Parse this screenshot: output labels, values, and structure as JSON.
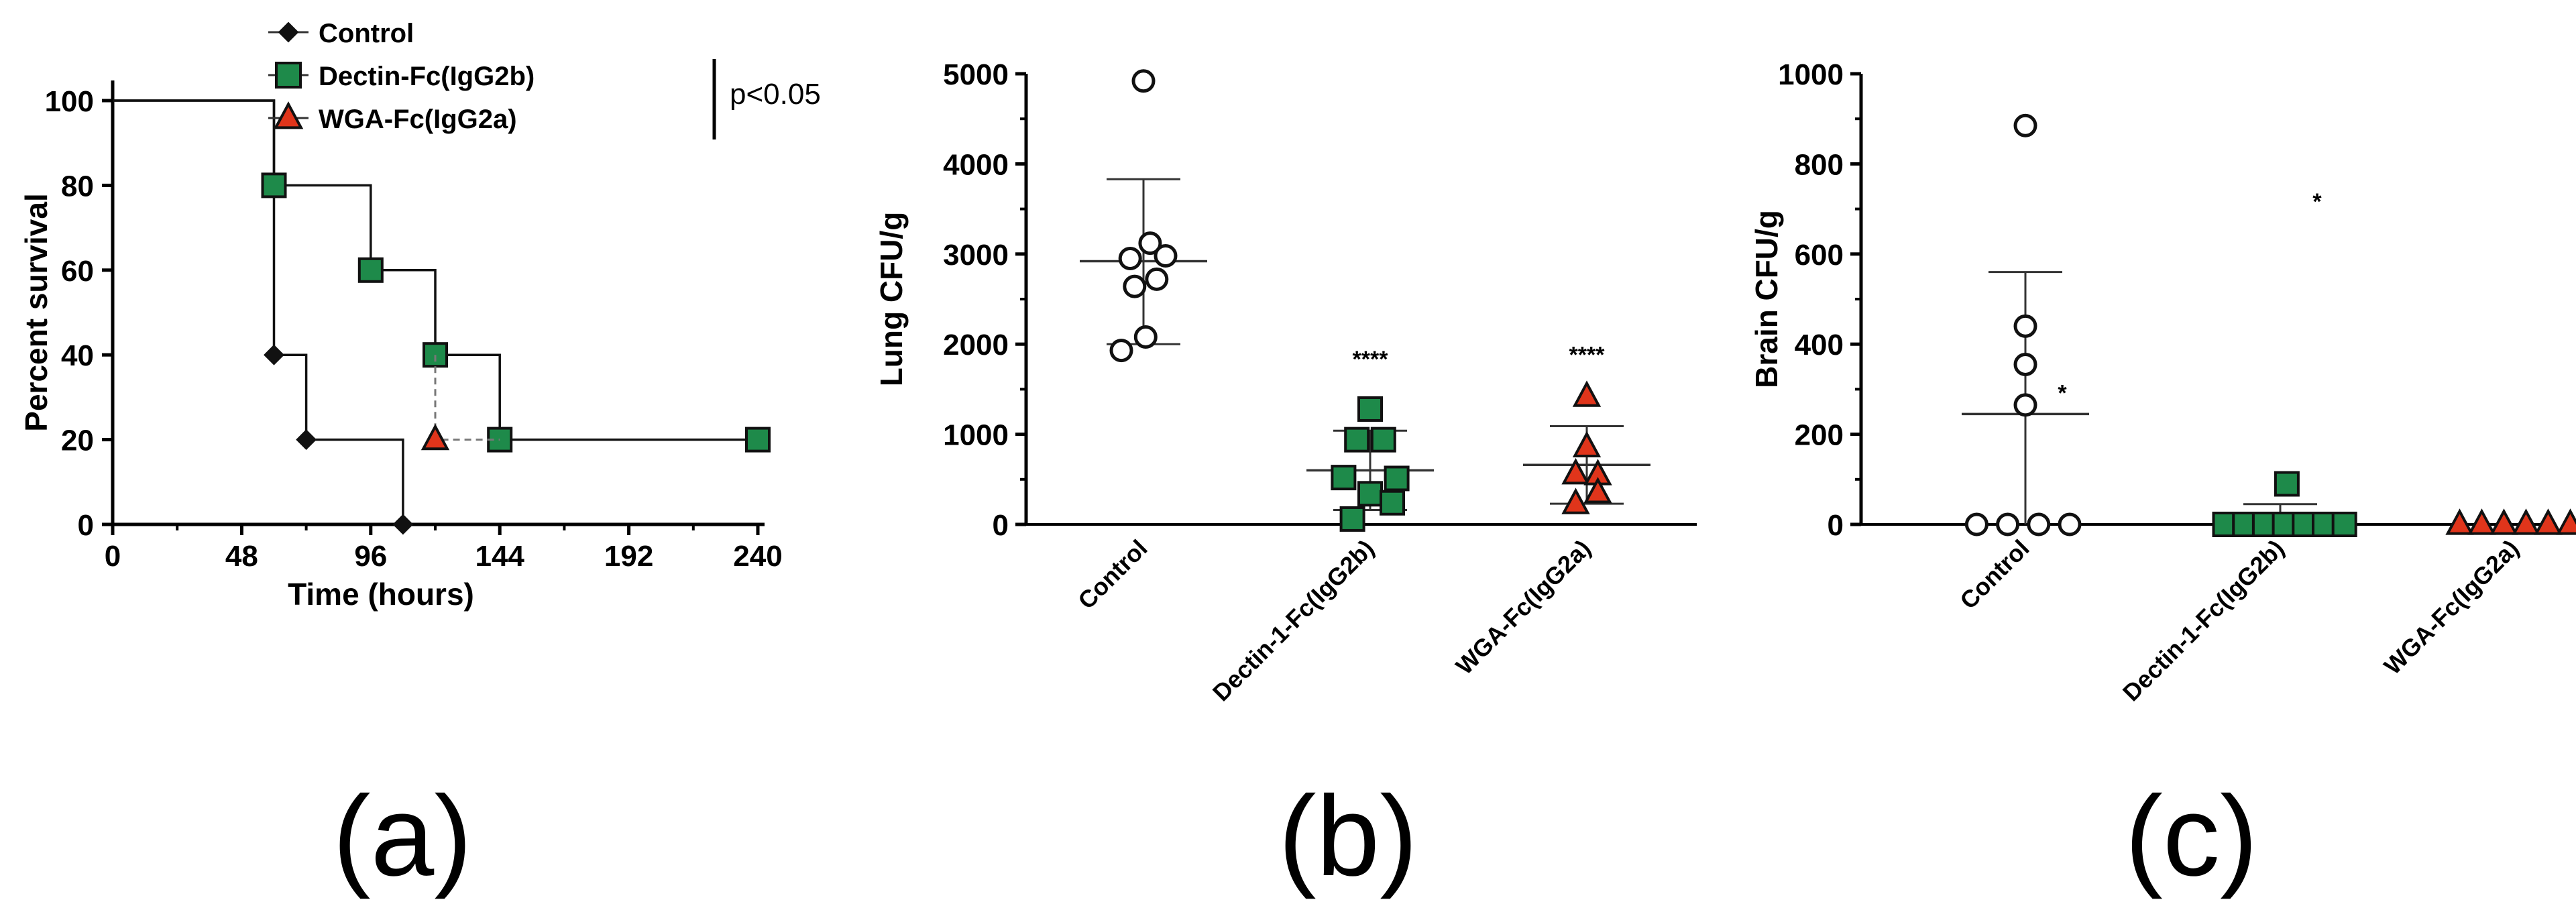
{
  "chart_data": [
    {
      "type": "line",
      "panel_label": "(a)",
      "title": "",
      "xlabel": "Time (hours)",
      "ylabel": "Percent survival",
      "xlim": [
        0,
        240
      ],
      "ylim": [
        0,
        100
      ],
      "xticks": [
        "0",
        "48",
        "96",
        "144",
        "192",
        "240"
      ],
      "yticks": [
        "0",
        "20",
        "40",
        "60",
        "80",
        "100"
      ],
      "annotation": "p<0.05",
      "colors": {
        "Control": "#111111",
        "Dectin-Fc(IgG2b)": "#1e8a4a",
        "WGA-Fc(IgG2a)": "#e0351b"
      },
      "series": [
        {
          "name": "Control",
          "marker": "diamond",
          "steps": [
            [
              0,
              100
            ],
            [
              60,
              100
            ],
            [
              60,
              40
            ],
            [
              72,
              40
            ],
            [
              72,
              20
            ],
            [
              108,
              20
            ],
            [
              108,
              0
            ]
          ],
          "markers": [
            [
              60,
              40
            ],
            [
              72,
              20
            ],
            [
              108,
              0
            ]
          ]
        },
        {
          "name": "Dectin-Fc(IgG2b)",
          "marker": "square",
          "steps": [
            [
              0,
              100
            ],
            [
              60,
              100
            ],
            [
              60,
              80
            ],
            [
              96,
              80
            ],
            [
              96,
              60
            ],
            [
              120,
              60
            ],
            [
              120,
              40
            ],
            [
              144,
              40
            ],
            [
              144,
              20
            ],
            [
              240,
              20
            ]
          ],
          "markers": [
            [
              60,
              80
            ],
            [
              96,
              60
            ],
            [
              120,
              40
            ],
            [
              144,
              20
            ],
            [
              240,
              20
            ]
          ]
        },
        {
          "name": "WGA-Fc(IgG2a)",
          "marker": "triangle",
          "steps": [
            [
              120,
              40
            ],
            [
              120,
              20
            ],
            [
              144,
              20
            ]
          ],
          "markers": [
            [
              120,
              20
            ]
          ]
        }
      ]
    },
    {
      "type": "scatter",
      "panel_label": "(b)",
      "ylabel": "Lung CFU/g",
      "ylim": [
        0,
        5000
      ],
      "yticks": [
        "0",
        "1000",
        "2000",
        "3000",
        "4000",
        "5000"
      ],
      "categories": [
        "Control",
        "Dectin-1-Fc(IgG2b)",
        "WGA-Fc(IgG2a)"
      ],
      "significance": [
        "",
        "****",
        "****"
      ],
      "groups": [
        {
          "name": "Control",
          "marker": "circle",
          "color": "#ffffff",
          "mean": 2920,
          "sd_low": 2000,
          "sd_high": 3830,
          "points": [
            [
              0,
              4920
            ],
            [
              -0.06,
              2950
            ],
            [
              0.03,
              3120
            ],
            [
              0.1,
              2980
            ],
            [
              -0.04,
              2640
            ],
            [
              0.06,
              2720
            ],
            [
              -0.1,
              1930
            ],
            [
              0.01,
              2080
            ]
          ]
        },
        {
          "name": "Dectin-1-Fc(IgG2b)",
          "marker": "square",
          "color": "#1e8a4a",
          "mean": 600,
          "sd_low": 160,
          "sd_high": 1040,
          "points": [
            [
              0,
              1280
            ],
            [
              -0.06,
              940
            ],
            [
              0.06,
              940
            ],
            [
              -0.12,
              520
            ],
            [
              0,
              340
            ],
            [
              0.12,
              510
            ],
            [
              -0.08,
              60
            ],
            [
              0.1,
              240
            ]
          ]
        },
        {
          "name": "WGA-Fc(IgG2a)",
          "marker": "triangle",
          "color": "#e0351b",
          "mean": 660,
          "sd_low": 230,
          "sd_high": 1090,
          "points": [
            [
              0,
              1420
            ],
            [
              0,
              860
            ],
            [
              -0.05,
              560
            ],
            [
              0.05,
              550
            ],
            [
              -0.05,
              230
            ],
            [
              0.05,
              350
            ]
          ]
        }
      ]
    },
    {
      "type": "scatter",
      "panel_label": "(c)",
      "ylabel": "Brain CFU/g",
      "ylim": [
        0,
        1000
      ],
      "yticks": [
        "0",
        "200",
        "400",
        "600",
        "800",
        "1000"
      ],
      "categories": [
        "Control",
        "Dectin-1-Fc(IgG2b)",
        "WGA-Fc(IgG2a)"
      ],
      "significance": [
        "*",
        "*",
        ""
      ],
      "groups": [
        {
          "name": "Control",
          "marker": "circle",
          "color": "#ffffff",
          "mean": 245,
          "sd_low": 0,
          "sd_high": 560,
          "points": [
            [
              0,
              885
            ],
            [
              0,
              440
            ],
            [
              0,
              355
            ],
            [
              0,
              265
            ],
            [
              -0.22,
              0
            ],
            [
              -0.08,
              0
            ],
            [
              0.06,
              0
            ],
            [
              0.2,
              0
            ]
          ]
        },
        {
          "name": "Dectin-1-Fc(IgG2b)",
          "marker": "square",
          "color": "#1e8a4a",
          "mean": 15,
          "sd_low": 0,
          "sd_high": 45,
          "points": [
            [
              0.03,
              90
            ],
            [
              -0.25,
              0
            ],
            [
              -0.16,
              0
            ],
            [
              -0.07,
              0
            ],
            [
              0.02,
              0
            ],
            [
              0.11,
              0
            ],
            [
              0.2,
              0
            ],
            [
              0.29,
              0
            ]
          ]
        },
        {
          "name": "WGA-Fc(IgG2a)",
          "marker": "triangle",
          "color": "#e0351b",
          "mean": 0,
          "sd_low": 0,
          "sd_high": 0,
          "points": [
            [
              -0.25,
              0
            ],
            [
              -0.15,
              0
            ],
            [
              -0.05,
              0
            ],
            [
              0.05,
              0
            ],
            [
              0.15,
              0
            ],
            [
              0.25,
              0
            ]
          ]
        }
      ]
    }
  ]
}
